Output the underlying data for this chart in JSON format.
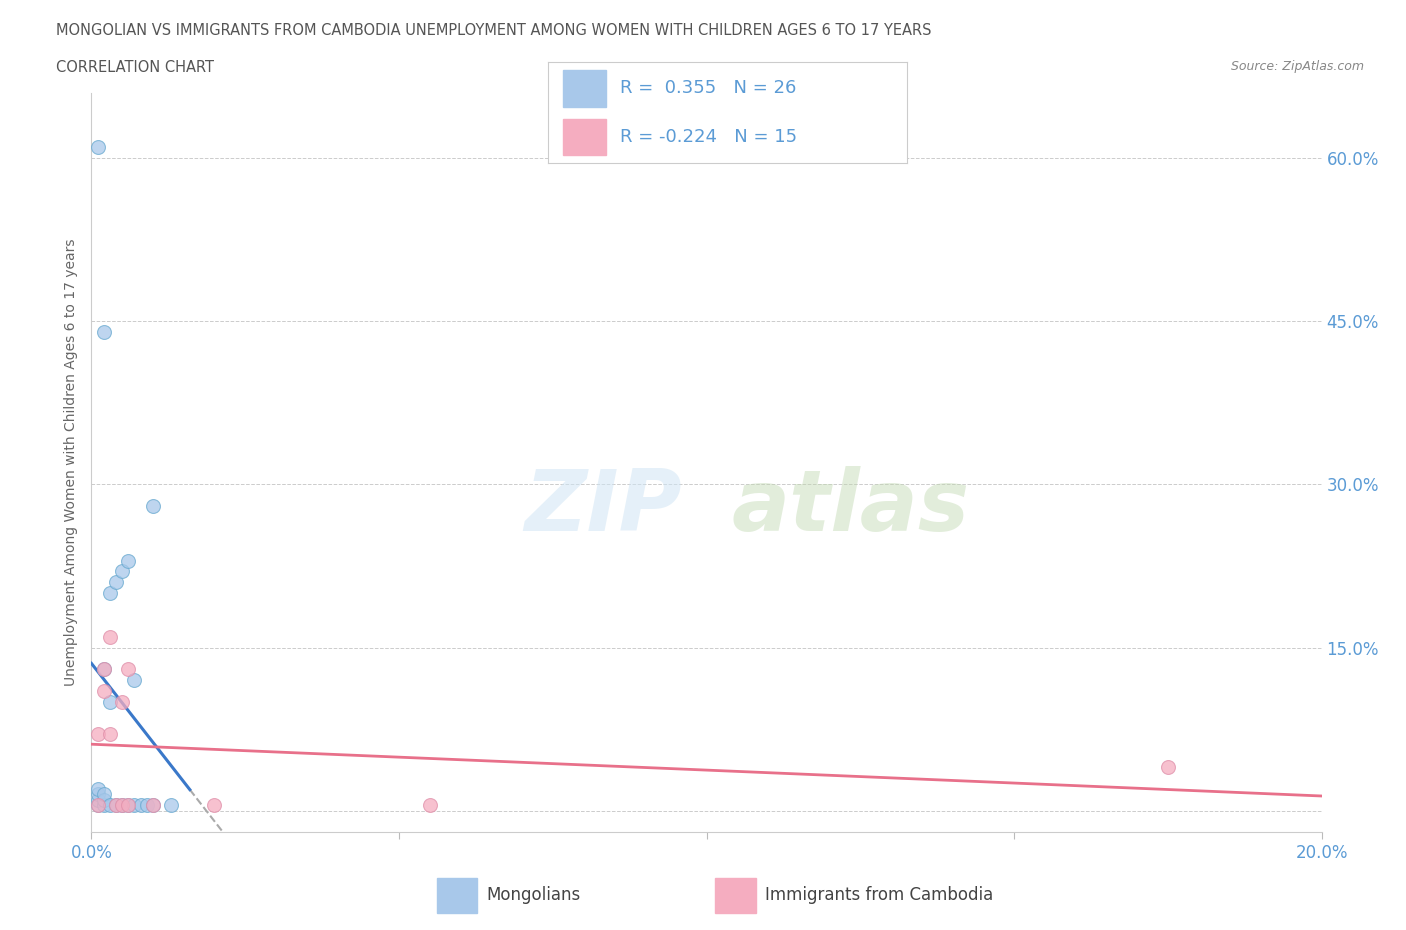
{
  "title_line1": "MONGOLIAN VS IMMIGRANTS FROM CAMBODIA UNEMPLOYMENT AMONG WOMEN WITH CHILDREN AGES 6 TO 17 YEARS",
  "title_line2": "CORRELATION CHART",
  "source": "Source: ZipAtlas.com",
  "ylabel": "Unemployment Among Women with Children Ages 6 to 17 years",
  "xlim": [
    0.0,
    0.2
  ],
  "ylim": [
    -0.02,
    0.66
  ],
  "ytick_vals": [
    0.0,
    0.15,
    0.3,
    0.45,
    0.6
  ],
  "ytick_labels": [
    "",
    "15.0%",
    "30.0%",
    "45.0%",
    "60.0%"
  ],
  "xtick_vals": [
    0.0,
    0.05,
    0.1,
    0.15,
    0.2
  ],
  "xtick_labels": [
    "0.0%",
    "",
    "",
    "",
    "20.0%"
  ],
  "watermark_zip": "ZIP",
  "watermark_atlas": "atlas",
  "legend_r1": "R =  0.355   N = 26",
  "legend_r2": "R = -0.224   N = 15",
  "mongolian_color": "#a8c8ea",
  "cambodia_color": "#f5adc0",
  "mongolian_line_color": "#3a78c9",
  "cambodia_line_color": "#e8708a",
  "grid_color": "#cccccc",
  "background_color": "#ffffff",
  "axis_label_color": "#5b9bd5",
  "title_color": "#555555",
  "source_color": "#888888",
  "mongolian_x": [
    0.001,
    0.001,
    0.001,
    0.001,
    0.002,
    0.002,
    0.002,
    0.002,
    0.003,
    0.003,
    0.003,
    0.004,
    0.004,
    0.005,
    0.005,
    0.006,
    0.006,
    0.007,
    0.007,
    0.008,
    0.009,
    0.01,
    0.01,
    0.013,
    0.001,
    0.002
  ],
  "mongolian_y": [
    0.005,
    0.01,
    0.015,
    0.02,
    0.005,
    0.01,
    0.13,
    0.015,
    0.005,
    0.1,
    0.2,
    0.005,
    0.21,
    0.005,
    0.22,
    0.005,
    0.23,
    0.005,
    0.12,
    0.005,
    0.005,
    0.005,
    0.28,
    0.005,
    0.61,
    0.44
  ],
  "cambodia_x": [
    0.001,
    0.001,
    0.002,
    0.002,
    0.003,
    0.003,
    0.004,
    0.005,
    0.005,
    0.006,
    0.006,
    0.01,
    0.02,
    0.055,
    0.175
  ],
  "cambodia_y": [
    0.005,
    0.07,
    0.13,
    0.11,
    0.16,
    0.07,
    0.005,
    0.1,
    0.005,
    0.13,
    0.005,
    0.005,
    0.005,
    0.005,
    0.04
  ]
}
